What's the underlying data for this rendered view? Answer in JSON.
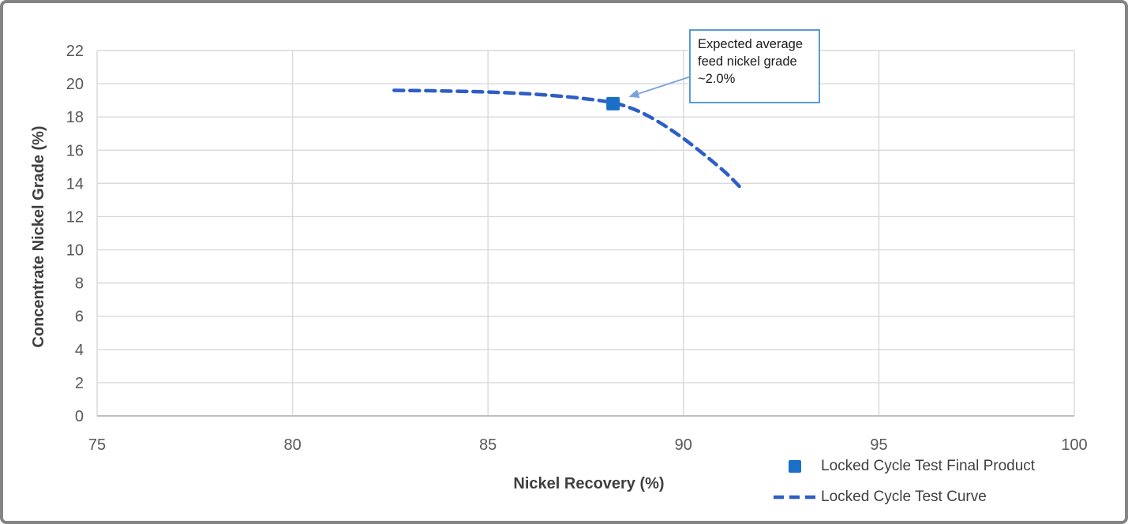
{
  "chart_data": {
    "type": "line",
    "title": "",
    "xlabel": "Nickel Recovery (%)",
    "ylabel": "Concentrate Nickel Grade (%)",
    "xlim": [
      75,
      100
    ],
    "ylim": [
      0,
      22
    ],
    "x_ticks": [
      75,
      80,
      85,
      90,
      95,
      100
    ],
    "y_ticks": [
      0,
      2,
      4,
      6,
      8,
      10,
      12,
      14,
      16,
      18,
      20,
      22
    ],
    "grid": true,
    "legend_position": "bottom-right",
    "series": [
      {
        "name": "Locked Cycle Test Curve",
        "style": "dashed-line",
        "color": "#2e5ec6",
        "points": [
          [
            82.6,
            19.6
          ],
          [
            83.4,
            19.58
          ],
          [
            84.2,
            19.55
          ],
          [
            85.0,
            19.5
          ],
          [
            85.8,
            19.42
          ],
          [
            86.6,
            19.3
          ],
          [
            87.4,
            19.12
          ],
          [
            88.2,
            18.85
          ],
          [
            88.8,
            18.4
          ],
          [
            89.4,
            17.65
          ],
          [
            90.0,
            16.7
          ],
          [
            90.6,
            15.6
          ],
          [
            91.1,
            14.6
          ],
          [
            91.5,
            13.65
          ]
        ]
      },
      {
        "name": "Locked Cycle Test Final Product",
        "style": "square-marker",
        "color": "#1b6fc6",
        "points": [
          [
            88.2,
            18.8
          ]
        ]
      }
    ],
    "annotation": {
      "text": "Expected average feed nickel grade ~2.0%",
      "border_color": "#5b9bd5",
      "arrow_color": "#7ba2de",
      "arrow_target": [
        88.6,
        19.3
      ]
    },
    "colors": {
      "gridline": "#d9d9d9",
      "axis_line": "#bfbfbf",
      "tick_label": "#595959",
      "axis_title": "#3f3f3f"
    }
  },
  "legend": {
    "items": [
      {
        "label": "Locked Cycle Test Final Product",
        "swatch": "square"
      },
      {
        "label": "Locked Cycle Test Curve",
        "swatch": "dash"
      }
    ]
  }
}
